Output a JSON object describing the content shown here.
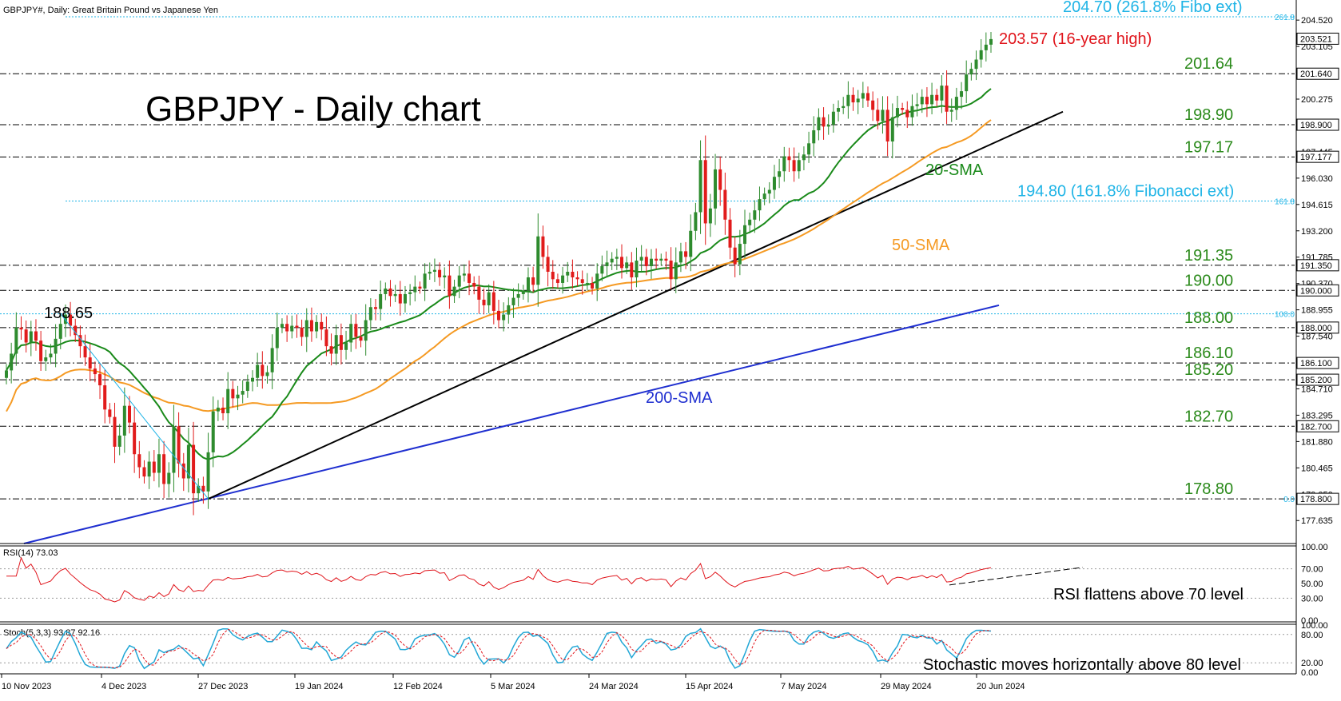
{
  "window_title": "GBPJPY#, Daily:  Great Britain Pound vs Japanese Yen",
  "chart_title": "GBPJPY - Daily chart",
  "colors": {
    "bull": "#2e8b2e",
    "bear": "#e11b1b",
    "sma20": "#1a8a1a",
    "sma50": "#f59a23",
    "sma200": "#1f2fd0",
    "trend": "#000000",
    "fibo": "#1fb4e6",
    "level_text": "#2b8a1b",
    "high_text": "#e0141b",
    "rsi": "#e0141b",
    "stoch_main": "#22a7d6",
    "stoch_signal": "#e0141b"
  },
  "chart_data": {
    "type": "candlestick",
    "title": "GBPJPY - Daily chart",
    "price_axis": {
      "range": [
        176.4,
        205.6
      ],
      "ticks": [
        "204.520",
        "203.105",
        "200.275",
        "197.445",
        "196.030",
        "194.615",
        "193.200",
        "191.785",
        "190.370",
        "188.955",
        "187.540",
        "186.125",
        "184.710",
        "183.295",
        "181.880",
        "180.465",
        "179.050",
        "177.635"
      ],
      "boxed_labels": [
        "203.521",
        "201.640",
        "198.900",
        "197.177",
        "191.350",
        "190.000",
        "188.000",
        "186.100",
        "185.200",
        "182.700",
        "178.800"
      ],
      "side_labels": [
        "261.8",
        "161.8",
        "100.0",
        "0.0"
      ]
    },
    "date_labels": [
      "10 Nov 2023",
      "4 Dec 2023",
      "27 Dec 2023",
      "19 Jan 2024",
      "12 Feb 2024",
      "5 Mar 2024",
      "24 Mar 2024",
      "15 Apr 2024",
      "7 May 2024",
      "29 May 2024",
      "20 Jun 2024"
    ],
    "levels": [
      {
        "label": "204.70 (261.8% Fibo ext)",
        "value": 204.7,
        "style": "fibo"
      },
      {
        "label": "201.64",
        "value": 201.64,
        "style": "dashdot"
      },
      {
        "label": "198.90",
        "value": 198.9,
        "style": "dashdot"
      },
      {
        "label": "197.17",
        "value": 197.17,
        "style": "dashdot"
      },
      {
        "label": "194.80 (161.8% Fibonacci ext)",
        "value": 194.8,
        "style": "fibo"
      },
      {
        "label": "191.35",
        "value": 191.35,
        "style": "dashdot"
      },
      {
        "label": "190.00",
        "value": 190.0,
        "style": "dashdot"
      },
      {
        "label": "188.00",
        "value": 188.0,
        "style": "dashdot"
      },
      {
        "label": "186.10",
        "value": 186.1,
        "style": "dashdot"
      },
      {
        "label": "185.20",
        "value": 185.2,
        "style": "dashdot"
      },
      {
        "label": "182.70",
        "value": 182.7,
        "style": "dashdot"
      },
      {
        "label": "178.80",
        "value": 178.8,
        "style": "dashdot"
      }
    ],
    "fibo_100": 188.74,
    "annotations": {
      "high": "203.57 (16-year high)",
      "low_high": "188.65",
      "sma20": "20-SMA",
      "sma50": "50-SMA",
      "sma200": "200-SMA"
    },
    "sma200_segment": {
      "start": 176.4,
      "end": 189.2
    },
    "closes": [
      185.7,
      186.6,
      188.0,
      187.9,
      187.2,
      187.8,
      187.3,
      186.2,
      186.4,
      186.6,
      187.4,
      188.2,
      188.7,
      188.1,
      187.6,
      187.0,
      186.4,
      185.8,
      185.5,
      184.9,
      183.6,
      183.2,
      181.6,
      182.2,
      183.8,
      182.9,
      181.2,
      180.5,
      180.0,
      180.8,
      180.2,
      181.2,
      179.6,
      180.2,
      182.7,
      180.7,
      179.9,
      181.7,
      179.1,
      179.5,
      179.2,
      181.3,
      183.5,
      183.7,
      183.4,
      184.7,
      184.2,
      184.4,
      184.6,
      185.1,
      185.3,
      186.0,
      185.4,
      185.6,
      186.9,
      188.0,
      188.2,
      187.8,
      188.1,
      188.0,
      187.5,
      188.4,
      187.8,
      188.3,
      187.9,
      187.0,
      186.6,
      187.6,
      186.8,
      187.2,
      188.2,
      187.5,
      187.3,
      188.4,
      189.1,
      189.0,
      189.8,
      190.1,
      189.7,
      189.8,
      189.3,
      189.8,
      189.9,
      190.2,
      190.1,
      190.9,
      191.0,
      191.1,
      190.7,
      190.8,
      189.7,
      190.2,
      190.8,
      190.9,
      190.4,
      190.2,
      189.5,
      189.2,
      189.9,
      188.9,
      188.4,
      188.7,
      189.2,
      189.6,
      189.8,
      190.0,
      190.7,
      190.3,
      192.9,
      191.8,
      191.0,
      190.6,
      190.4,
      190.8,
      191.0,
      190.7,
      190.6,
      190.4,
      190.4,
      190.1,
      190.9,
      191.3,
      191.5,
      191.7,
      191.8,
      191.2,
      191.5,
      190.7,
      191.6,
      191.8,
      191.3,
      191.7,
      191.6,
      191.7,
      191.6,
      190.6,
      191.5,
      192.1,
      191.8,
      193.2,
      194.2,
      197.0,
      193.6,
      194.4,
      196.5,
      195.4,
      193.8,
      192.3,
      191.4,
      192.5,
      193.5,
      193.8,
      194.3,
      194.9,
      195.2,
      195.4,
      196.1,
      196.4,
      197.2,
      197.0,
      196.4,
      197.0,
      197.3,
      197.9,
      198.6,
      199.3,
      198.8,
      198.9,
      199.6,
      199.8,
      199.9,
      200.5,
      200.1,
      200.3,
      200.6,
      200.2,
      199.7,
      199.1,
      199.7,
      198.0,
      199.3,
      199.8,
      199.7,
      199.3,
      199.9,
      200.0,
      200.4,
      200.0,
      200.5,
      200.2,
      201.0,
      199.6,
      199.7,
      200.4,
      200.7,
      201.6,
      201.9,
      202.4,
      202.9,
      203.2,
      203.5
    ]
  },
  "rsi": {
    "label": "RSI(14) 73.03",
    "ticks": [
      "100.00",
      "70.00",
      "50.00",
      "30.00",
      "0.00"
    ],
    "note": "RSI flattens above 70 level"
  },
  "stoch": {
    "label": "Stoch(5,3,3) 93.87 92.16",
    "ticks": [
      "100.00",
      "80.00",
      "20.00",
      "0.00"
    ],
    "note": "Stochastic moves horizontally above 80 level"
  }
}
